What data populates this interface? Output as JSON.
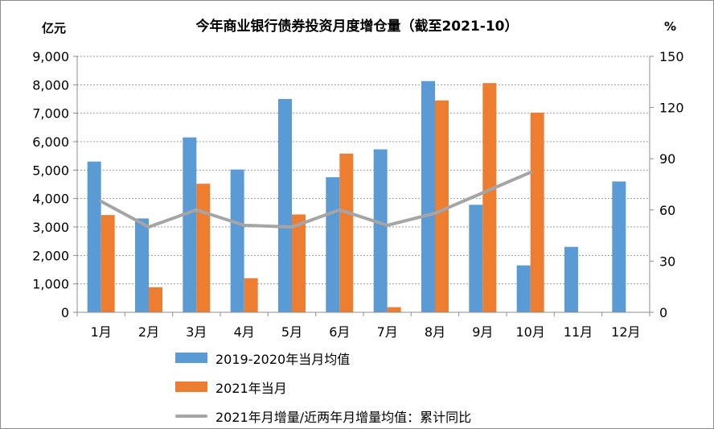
{
  "chart_data": {
    "type": "bar",
    "title": "今年商业银行债券投资月度增仓量（截至2021-10）",
    "ylabel_left": "亿元",
    "ylabel_right": "%",
    "categories": [
      "1月",
      "2月",
      "3月",
      "4月",
      "5月",
      "6月",
      "7月",
      "8月",
      "9月",
      "10月",
      "11月",
      "12月"
    ],
    "ylim_left": [
      0,
      9000
    ],
    "yticks_left": [
      "0",
      "1,000",
      "2,000",
      "3,000",
      "4,000",
      "5,000",
      "6,000",
      "7,000",
      "8,000",
      "9,000"
    ],
    "ylim_right": [
      0,
      150
    ],
    "yticks_right": [
      "0",
      "30",
      "60",
      "90",
      "120",
      "150"
    ],
    "grid": "horizontal dotted",
    "legend_position": "bottom",
    "series": [
      {
        "name": "2019-2020年当月均值",
        "kind": "bar",
        "axis": "left",
        "color": "#5b9bd5",
        "values": [
          5300,
          3300,
          6150,
          5020,
          7500,
          4750,
          5730,
          8130,
          3780,
          1650,
          2300,
          4600
        ]
      },
      {
        "name": "2021年当月",
        "kind": "bar",
        "axis": "left",
        "color": "#ed7d31",
        "values": [
          3420,
          880,
          4520,
          1200,
          3440,
          5580,
          180,
          7450,
          8060,
          7020,
          null,
          null
        ]
      },
      {
        "name": "2021年月增量/近两年月增量均值：累计同比",
        "kind": "line",
        "axis": "right",
        "color": "#a5a5a5",
        "values": [
          65,
          50,
          60,
          51,
          50,
          60,
          51,
          58,
          70,
          82,
          null,
          null
        ]
      }
    ]
  }
}
